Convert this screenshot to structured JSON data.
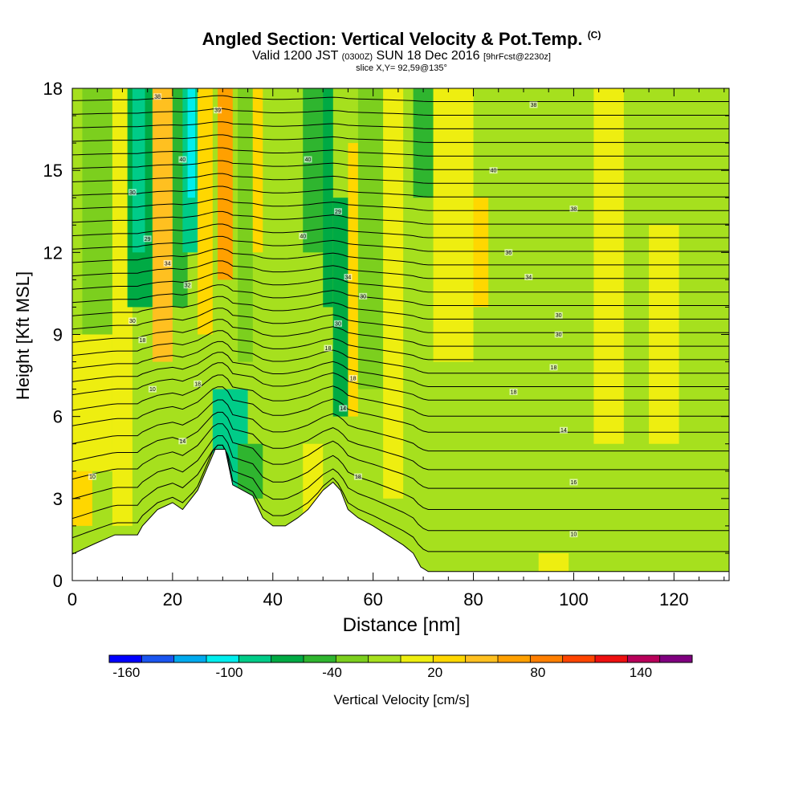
{
  "header": {
    "title": "Angled Section: Vertical Velocity & Pot.Temp.",
    "title_tag": "(C)",
    "sub_valid": "Valid 1200 JST",
    "sub_utc": "(0300Z)",
    "sub_date": "SUN 18 Dec 2016",
    "sub_fcst": "[9hrFcst@2230z]",
    "slice": "slice X,Y= 92,59@135°"
  },
  "chart_data": {
    "type": "heatmap",
    "title": "Angled Section: Vertical Velocity & Pot.Temp.",
    "xlabel": "Distance [nm]",
    "ylabel": "Height [Kft MSL]",
    "xlim": [
      0,
      131
    ],
    "ylim": [
      0,
      18
    ],
    "x_ticks": [
      0,
      20,
      40,
      60,
      80,
      100,
      120
    ],
    "y_ticks": [
      0,
      3,
      6,
      9,
      12,
      15,
      18
    ],
    "colorbar": {
      "label": "Vertical Velocity [cm/s]",
      "tick_labels": [
        "-160",
        "-100",
        "-40",
        "20",
        "80",
        "140"
      ],
      "tick_values": [
        -160,
        -100,
        -40,
        20,
        80,
        140
      ],
      "range": [
        -170,
        170
      ],
      "step": 20,
      "colors": [
        "#0000ff",
        "#1a55f0",
        "#00aaee",
        "#00eeee",
        "#00cc88",
        "#00aa44",
        "#2fb52f",
        "#7ccf1e",
        "#a6e01e",
        "#eeee10",
        "#ffd700",
        "#ffc020",
        "#ffa000",
        "#ff7f00",
        "#ff4500",
        "#ee1010",
        "#b8005a",
        "#800080"
      ]
    },
    "velocity_regions": [
      {
        "x0": 0,
        "x1": 132,
        "y0": 0,
        "y1": 18,
        "w": 0
      },
      {
        "x0": 2,
        "x1": 8,
        "y0": 5,
        "y1": 18,
        "w": -20
      },
      {
        "x0": 8,
        "x1": 12,
        "y0": 2,
        "y1": 18,
        "w": 20
      },
      {
        "x0": 11,
        "x1": 16,
        "y0": 10,
        "y1": 18,
        "w": -60
      },
      {
        "x0": 12,
        "x1": 14.5,
        "y0": 12,
        "y1": 18,
        "w": -80
      },
      {
        "x0": 16,
        "x1": 20,
        "y0": 8,
        "y1": 18,
        "w": 60
      },
      {
        "x0": 20,
        "x1": 23,
        "y0": 10,
        "y1": 18,
        "w": -40
      },
      {
        "x0": 22,
        "x1": 25,
        "y0": 12,
        "y1": 18,
        "w": -80
      },
      {
        "x0": 23,
        "x1": 24.5,
        "y0": 14,
        "y1": 18,
        "w": -100
      },
      {
        "x0": 25,
        "x1": 28,
        "y0": 9,
        "y1": 18,
        "w": 40
      },
      {
        "x0": 29,
        "x1": 32,
        "y0": 11,
        "y1": 18,
        "w": 80
      },
      {
        "x0": 33,
        "x1": 36,
        "y0": 8,
        "y1": 18,
        "w": -20
      },
      {
        "x0": 36,
        "x1": 38,
        "y0": 12,
        "y1": 18,
        "w": 40
      },
      {
        "x0": 46,
        "x1": 52,
        "y0": 12,
        "y1": 18,
        "w": -40
      },
      {
        "x0": 50,
        "x1": 52,
        "y0": 10,
        "y1": 18,
        "w": -60
      },
      {
        "x0": 52,
        "x1": 55,
        "y0": 6,
        "y1": 14,
        "w": -60
      },
      {
        "x0": 55,
        "x1": 57,
        "y0": 6,
        "y1": 16,
        "w": 40
      },
      {
        "x0": 57,
        "x1": 62,
        "y0": 7,
        "y1": 18,
        "w": -20
      },
      {
        "x0": 62,
        "x1": 66,
        "y0": 3,
        "y1": 18,
        "w": 20
      },
      {
        "x0": 68,
        "x1": 72,
        "y0": 14,
        "y1": 18,
        "w": -40
      },
      {
        "x0": 72,
        "x1": 80,
        "y0": 8,
        "y1": 18,
        "w": 20
      },
      {
        "x0": 80,
        "x1": 83,
        "y0": 10,
        "y1": 14,
        "w": 40
      },
      {
        "x0": 83,
        "x1": 104,
        "y0": 3,
        "y1": 14,
        "w": 0
      },
      {
        "x0": 104,
        "x1": 110,
        "y0": 5,
        "y1": 18,
        "w": 20
      },
      {
        "x0": 115,
        "x1": 121,
        "y0": 5,
        "y1": 13,
        "w": 20
      },
      {
        "x0": 122,
        "x1": 128,
        "y0": 0,
        "y1": 18,
        "w": 0
      },
      {
        "x0": 72,
        "x1": 132,
        "y0": 0,
        "y1": 2,
        "w": 0
      },
      {
        "x0": 93,
        "x1": 99,
        "y0": 0,
        "y1": 1,
        "w": 20
      },
      {
        "x0": 28,
        "x1": 35,
        "y0": 3,
        "y1": 7,
        "w": -80
      },
      {
        "x0": 33,
        "x1": 38,
        "y0": 3,
        "y1": 5,
        "w": -40
      },
      {
        "x0": 0,
        "x1": 4,
        "y0": 2,
        "y1": 4,
        "w": 40
      },
      {
        "x0": 46,
        "x1": 50,
        "y0": 2,
        "y1": 5,
        "w": 20
      },
      {
        "x0": 0,
        "x1": 8,
        "y0": 4,
        "y1": 9,
        "w": 20
      }
    ],
    "terrain": [
      {
        "x": 0,
        "h": 0.97
      },
      {
        "x": 4.5,
        "h": 1.35
      },
      {
        "x": 8.5,
        "h": 1.67
      },
      {
        "x": 13,
        "h": 1.67
      },
      {
        "x": 14,
        "h": 2.0
      },
      {
        "x": 17,
        "h": 2.6
      },
      {
        "x": 20,
        "h": 2.85
      },
      {
        "x": 22,
        "h": 2.6
      },
      {
        "x": 25,
        "h": 3.3
      },
      {
        "x": 28.5,
        "h": 4.8
      },
      {
        "x": 30.5,
        "h": 4.8
      },
      {
        "x": 32,
        "h": 3.5
      },
      {
        "x": 34,
        "h": 3.3
      },
      {
        "x": 36,
        "h": 3.1
      },
      {
        "x": 38,
        "h": 2.3
      },
      {
        "x": 40,
        "h": 2.0
      },
      {
        "x": 42.5,
        "h": 2.0
      },
      {
        "x": 45,
        "h": 2.3
      },
      {
        "x": 47,
        "h": 2.6
      },
      {
        "x": 50,
        "h": 3.3
      },
      {
        "x": 52,
        "h": 3.6
      },
      {
        "x": 53.5,
        "h": 3.3
      },
      {
        "x": 55,
        "h": 2.6
      },
      {
        "x": 57,
        "h": 2.3
      },
      {
        "x": 60,
        "h": 2.0
      },
      {
        "x": 63,
        "h": 1.65
      },
      {
        "x": 66,
        "h": 1.3
      },
      {
        "x": 68,
        "h": 1.0
      },
      {
        "x": 69.5,
        "h": 0.5
      },
      {
        "x": 71,
        "h": 0.33
      },
      {
        "x": 76,
        "h": 0.33
      },
      {
        "x": 80,
        "h": 0.33
      },
      {
        "x": 131,
        "h": 0.33
      }
    ],
    "isentropes": {
      "base_heights": [
        0.8,
        1.6,
        2.4,
        3.2,
        3.9,
        4.6,
        5.3,
        5.9,
        6.5,
        7.0,
        7.5,
        8.0,
        8.5,
        9.0,
        9.5,
        10.0,
        10.5,
        11.0,
        11.5,
        12.0,
        12.5,
        13.0,
        13.5,
        14.0,
        14.5,
        15.0,
        15.5,
        16.0,
        16.5,
        17.0,
        17.5
      ],
      "labels": [
        {
          "x": 4,
          "y": 3.8,
          "text": "10"
        },
        {
          "x": 57,
          "y": 3.8,
          "text": "18"
        },
        {
          "x": 100,
          "y": 1.7,
          "text": "10"
        },
        {
          "x": 100,
          "y": 3.6,
          "text": "16"
        },
        {
          "x": 98,
          "y": 5.5,
          "text": "14"
        },
        {
          "x": 96,
          "y": 7.8,
          "text": "18"
        },
        {
          "x": 88,
          "y": 6.9,
          "text": "18"
        },
        {
          "x": 97,
          "y": 9.0,
          "text": "30"
        },
        {
          "x": 97,
          "y": 9.7,
          "text": "30"
        },
        {
          "x": 91,
          "y": 11.1,
          "text": "34"
        },
        {
          "x": 87,
          "y": 12.0,
          "text": "36"
        },
        {
          "x": 100,
          "y": 13.6,
          "text": "38"
        },
        {
          "x": 84,
          "y": 15.0,
          "text": "40"
        },
        {
          "x": 92,
          "y": 17.4,
          "text": "38"
        },
        {
          "x": 25,
          "y": 7.2,
          "text": "18"
        },
        {
          "x": 16,
          "y": 7.0,
          "text": "10"
        },
        {
          "x": 14,
          "y": 8.8,
          "text": "18"
        },
        {
          "x": 12,
          "y": 9.5,
          "text": "30"
        },
        {
          "x": 19,
          "y": 11.6,
          "text": "34"
        },
        {
          "x": 23,
          "y": 10.8,
          "text": "32"
        },
        {
          "x": 15,
          "y": 12.5,
          "text": "29"
        },
        {
          "x": 12,
          "y": 14.2,
          "text": "30"
        },
        {
          "x": 22,
          "y": 15.4,
          "text": "40"
        },
        {
          "x": 17,
          "y": 17.7,
          "text": "38"
        },
        {
          "x": 29,
          "y": 17.2,
          "text": "39"
        },
        {
          "x": 47,
          "y": 15.4,
          "text": "40"
        },
        {
          "x": 46,
          "y": 12.6,
          "text": "40"
        },
        {
          "x": 53,
          "y": 13.5,
          "text": "29"
        },
        {
          "x": 55,
          "y": 11.1,
          "text": "34"
        },
        {
          "x": 58,
          "y": 10.4,
          "text": "30"
        },
        {
          "x": 53,
          "y": 9.4,
          "text": "30"
        },
        {
          "x": 51,
          "y": 8.5,
          "text": "18"
        },
        {
          "x": 56,
          "y": 7.4,
          "text": "18"
        },
        {
          "x": 54,
          "y": 6.3,
          "text": "14"
        },
        {
          "x": 22,
          "y": 5.1,
          "text": "14"
        }
      ]
    }
  }
}
